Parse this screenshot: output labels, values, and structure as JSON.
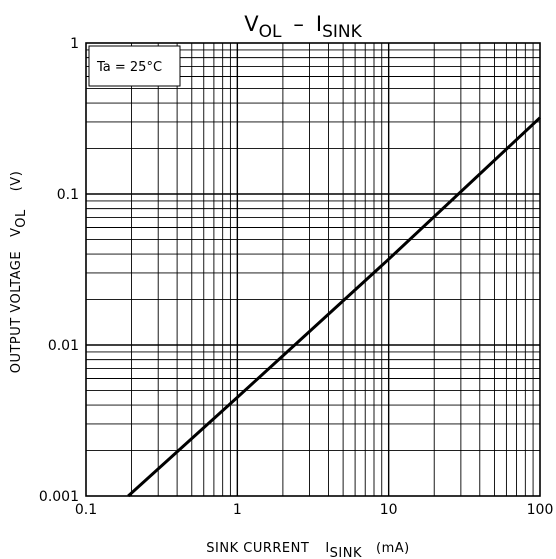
{
  "chart_data": {
    "type": "line",
    "title": {
      "v": "V",
      "v_sub": "OL",
      "dash": "–",
      "i": "I",
      "i_sub": "SINK"
    },
    "xlabel": {
      "text": "SINK CURRENT",
      "sym": "I",
      "sym_sub": "SINK",
      "unit": "(mA)"
    },
    "ylabel": {
      "text": "OUTPUT VOLTAGE",
      "sym": "V",
      "sym_sub": "OL",
      "unit": "(V)"
    },
    "x_scale": "log",
    "y_scale": "log",
    "xlim": [
      0.1,
      100
    ],
    "ylim": [
      0.001,
      1
    ],
    "x_ticks": [
      {
        "value": 0.1,
        "label": "0.1"
      },
      {
        "value": 1,
        "label": "1"
      },
      {
        "value": 10,
        "label": "10"
      },
      {
        "value": 100,
        "label": "100"
      }
    ],
    "y_ticks": [
      {
        "value": 0.001,
        "label": "0.001"
      },
      {
        "value": 0.01,
        "label": "0.01"
      },
      {
        "value": 0.1,
        "label": "0.1"
      },
      {
        "value": 1,
        "label": "1"
      }
    ],
    "grid": true,
    "annotation": "Ta = 25°C",
    "series": [
      {
        "x": [
          0.19,
          1,
          10,
          100
        ],
        "y": [
          0.001,
          0.0045,
          0.037,
          0.32
        ]
      }
    ]
  }
}
